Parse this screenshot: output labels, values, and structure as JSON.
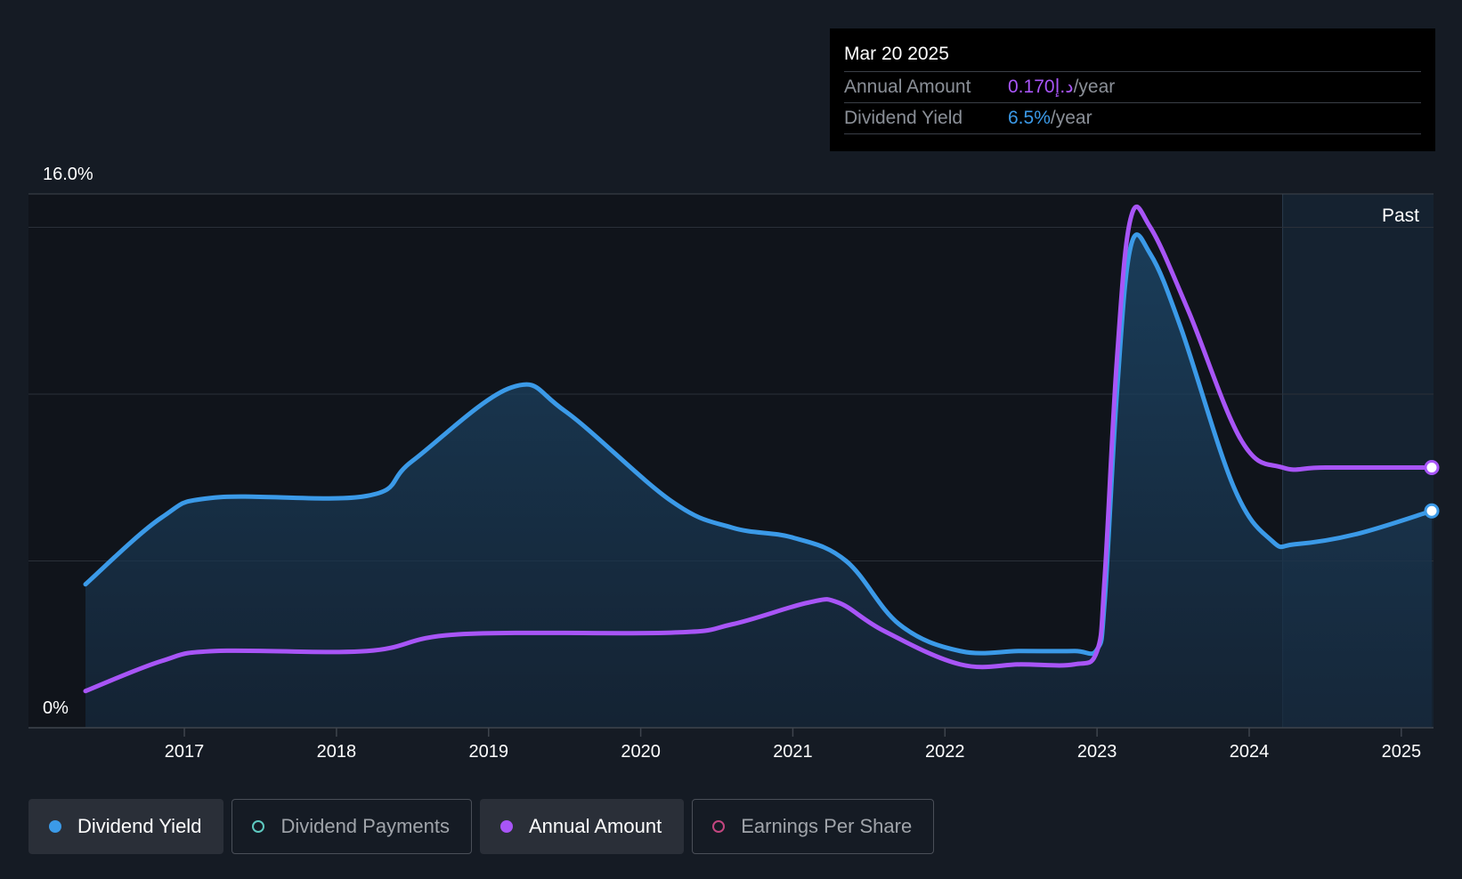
{
  "tooltip": {
    "date": "Mar 20 2025",
    "annual_amount_label": "Annual Amount",
    "annual_amount_value": "0.170د.إ",
    "annual_amount_unit": "/year",
    "dividend_yield_label": "Dividend Yield",
    "dividend_yield_value": "6.5%",
    "dividend_yield_unit": "/year"
  },
  "legend": [
    {
      "label": "Dividend Yield",
      "color": "#3b9ae8",
      "active": true
    },
    {
      "label": "Dividend Payments",
      "color": "#5ec9c0",
      "active": false
    },
    {
      "label": "Annual Amount",
      "color": "#a855f7",
      "active": true
    },
    {
      "label": "Earnings Per Share",
      "color": "#c2467f",
      "active": false
    }
  ],
  "chart_data": {
    "type": "line",
    "y_top_label": "16.0%",
    "y_bottom_label": "0%",
    "past_label": "Past",
    "ylim": [
      0,
      16
    ],
    "xlim": [
      2016.35,
      2025.2
    ],
    "x_ticks": [
      "2017",
      "2018",
      "2019",
      "2020",
      "2021",
      "2022",
      "2023",
      "2024",
      "2025"
    ],
    "forecast_start": 2024.22,
    "series": [
      {
        "name": "Dividend Yield",
        "color": "#3b9ae8",
        "fill": true,
        "x": [
          2016.35,
          2016.85,
          2017.2,
          2018.2,
          2018.5,
          2019.15,
          2019.5,
          2020.2,
          2020.6,
          2021.0,
          2021.35,
          2021.7,
          2022.1,
          2022.5,
          2022.85,
          2023.0,
          2023.05,
          2023.13,
          2023.22,
          2023.35,
          2023.55,
          2023.9,
          2024.15,
          2024.3,
          2024.7,
          2025.2
        ],
        "y": [
          4.3,
          6.3,
          6.9,
          6.95,
          8.0,
          10.2,
          9.5,
          6.8,
          6.0,
          5.7,
          5.0,
          3.1,
          2.3,
          2.3,
          2.3,
          2.35,
          3.8,
          10.0,
          14.4,
          14.2,
          12.0,
          7.2,
          5.6,
          5.5,
          5.8,
          6.5
        ]
      },
      {
        "name": "Annual Amount",
        "color": "#a855f7",
        "fill": false,
        "x": [
          2016.35,
          2016.85,
          2017.2,
          2018.2,
          2018.8,
          2020.2,
          2020.6,
          2021.1,
          2021.3,
          2021.6,
          2022.1,
          2022.5,
          2022.85,
          2023.0,
          2023.05,
          2023.13,
          2023.22,
          2023.35,
          2023.6,
          2023.95,
          2024.22,
          2024.5,
          2025.2
        ],
        "y": [
          1.1,
          2.0,
          2.3,
          2.3,
          2.8,
          2.85,
          3.1,
          3.75,
          3.75,
          2.9,
          1.9,
          1.9,
          1.9,
          2.3,
          4.5,
          11.0,
          15.25,
          15.0,
          12.5,
          8.6,
          7.8,
          7.8,
          7.8
        ]
      }
    ]
  }
}
